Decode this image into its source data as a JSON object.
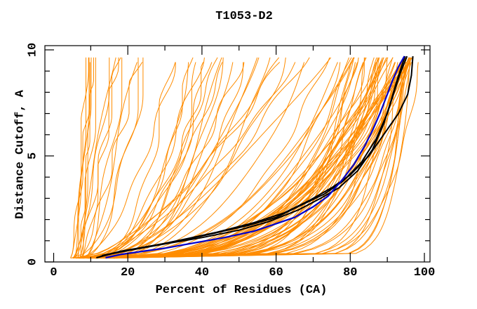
{
  "figure": {
    "background": "#ffffff"
  },
  "chart_data": {
    "type": "line",
    "title": "T1053-D2",
    "xlabel": "Percent of Residues (CA)",
    "ylabel": "Distance Cutoff, A",
    "xlim": [
      0,
      100
    ],
    "ylim": [
      0,
      10
    ],
    "x_major_ticks": [
      0,
      20,
      40,
      60,
      80,
      100
    ],
    "x_minor_tick_step": 10,
    "y_major_ticks": [
      0,
      5,
      10
    ],
    "y_minor_tick_step": 1,
    "grid": false,
    "legend": "none",
    "tick_style": "inward-mirrored",
    "colors": {
      "ensemble": "#ff8c00",
      "reference": "#000000",
      "best_model": "#0000cd",
      "frame": "#000000",
      "text": "#000000",
      "background": "#ffffff"
    },
    "ensemble": {
      "color": "#ff8c00",
      "total_curves": 109,
      "seed": 20531,
      "y_start": 0.18,
      "y_top_range": [
        9.5,
        9.8
      ],
      "y_step": 0.22,
      "groups": [
        {
          "count": 16,
          "wall": [
            8.5,
            30
          ],
          "start": [
            4,
            9
          ],
          "shape": [
            0.45,
            0.85
          ],
          "wave": [
            0.7,
            1.9
          ],
          "skew": "low"
        },
        {
          "count": 26,
          "wall": [
            30,
            75
          ],
          "start": [
            5,
            13
          ],
          "shape": [
            0.3,
            0.65
          ],
          "wave": [
            0.5,
            1.5
          ],
          "skew": "none"
        },
        {
          "count": 58,
          "wall": [
            75,
            96.5
          ],
          "start": [
            6,
            17
          ],
          "shape": [
            0.1,
            0.4
          ],
          "wave": [
            0.3,
            1.1
          ],
          "skew": "high"
        },
        {
          "count": 9,
          "wall": [
            86,
            99
          ],
          "start": [
            8,
            18
          ],
          "shape": [
            0.05,
            0.1
          ],
          "wave": [
            0.2,
            0.7
          ],
          "skew": "high"
        }
      ]
    },
    "highlighted": [
      {
        "name": "reference-curve-1",
        "color": "#000000",
        "width": 2,
        "points": [
          [
            11.5,
            0.2
          ],
          [
            16,
            0.4
          ],
          [
            22,
            0.6
          ],
          [
            30,
            0.85
          ],
          [
            40,
            1.15
          ],
          [
            50,
            1.5
          ],
          [
            58,
            1.9
          ],
          [
            66,
            2.45
          ],
          [
            72,
            3.0
          ],
          [
            77,
            3.5
          ],
          [
            82,
            4.3
          ],
          [
            86,
            5.3
          ],
          [
            89,
            6.5
          ],
          [
            91,
            7.6
          ],
          [
            92.5,
            8.5
          ],
          [
            94,
            9.3
          ],
          [
            94.8,
            9.7
          ]
        ]
      },
      {
        "name": "reference-curve-2",
        "color": "#000000",
        "width": 2,
        "points": [
          [
            12.5,
            0.25
          ],
          [
            18,
            0.5
          ],
          [
            26,
            0.75
          ],
          [
            34,
            1.0
          ],
          [
            42,
            1.3
          ],
          [
            52,
            1.7
          ],
          [
            60,
            2.1
          ],
          [
            67,
            2.7
          ],
          [
            73,
            3.2
          ],
          [
            78,
            3.8
          ],
          [
            83,
            4.7
          ],
          [
            87,
            5.8
          ],
          [
            90,
            7.0
          ],
          [
            92,
            8.1
          ],
          [
            93.5,
            8.9
          ],
          [
            95.3,
            9.7
          ]
        ]
      },
      {
        "name": "reference-curve-3",
        "color": "#000000",
        "width": 2,
        "points": [
          [
            13,
            0.3
          ],
          [
            20,
            0.55
          ],
          [
            28,
            0.8
          ],
          [
            36,
            1.1
          ],
          [
            44,
            1.4
          ],
          [
            54,
            1.85
          ],
          [
            62,
            2.3
          ],
          [
            69,
            2.9
          ],
          [
            75,
            3.5
          ],
          [
            80,
            4.1
          ],
          [
            85,
            5.0
          ],
          [
            89,
            6.0
          ],
          [
            93,
            7.0
          ],
          [
            95.5,
            7.9
          ],
          [
            96.5,
            8.8
          ],
          [
            96.9,
            9.7
          ]
        ]
      },
      {
        "name": "best-model-curve",
        "color": "#0000cd",
        "width": 2.2,
        "points": [
          [
            14,
            0.2
          ],
          [
            18,
            0.35
          ],
          [
            24,
            0.5
          ],
          [
            30,
            0.65
          ],
          [
            38,
            0.9
          ],
          [
            46,
            1.15
          ],
          [
            54,
            1.45
          ],
          [
            60,
            1.8
          ],
          [
            65,
            2.1
          ],
          [
            70,
            2.6
          ],
          [
            74,
            3.1
          ],
          [
            78,
            3.9
          ],
          [
            81,
            4.6
          ],
          [
            84,
            5.5
          ],
          [
            86,
            6.2
          ],
          [
            88,
            7.0
          ],
          [
            90,
            7.9
          ],
          [
            91.5,
            8.6
          ],
          [
            93,
            9.2
          ],
          [
            94.6,
            9.7
          ]
        ]
      }
    ]
  }
}
